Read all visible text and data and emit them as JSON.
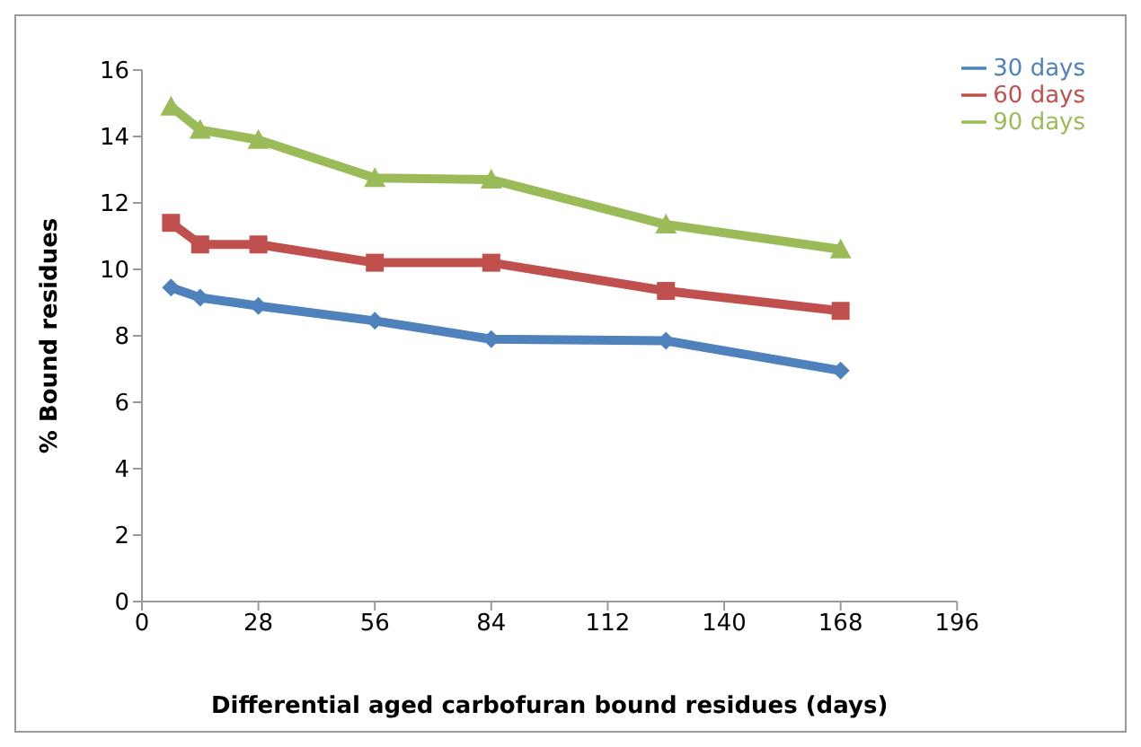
{
  "chart_data": {
    "type": "line",
    "xlabel": "Differential aged carbofuran bound residues (days)",
    "ylabel": "% Bound residues",
    "x": [
      7,
      14,
      28,
      56,
      84,
      126,
      168
    ],
    "series": [
      {
        "name": "30 days",
        "color": "#4f81bd",
        "marker": "diamond",
        "values": [
          9.45,
          9.15,
          8.9,
          8.45,
          7.9,
          7.85,
          6.95
        ]
      },
      {
        "name": "60 days",
        "color": "#c0504d",
        "marker": "square",
        "values": [
          11.4,
          10.75,
          10.75,
          10.2,
          10.2,
          9.35,
          8.75
        ]
      },
      {
        "name": "90 days",
        "color": "#9bbb59",
        "marker": "triangle",
        "values": [
          14.9,
          14.2,
          13.9,
          12.75,
          12.7,
          11.35,
          10.6
        ]
      }
    ],
    "xlim": [
      0,
      196
    ],
    "xticks": [
      0,
      28,
      56,
      84,
      112,
      140,
      168,
      196
    ],
    "ylim": [
      0,
      16
    ],
    "yticks": [
      0,
      2,
      4,
      6,
      8,
      10,
      12,
      14,
      16
    ],
    "grid": false,
    "legend": "top right"
  }
}
